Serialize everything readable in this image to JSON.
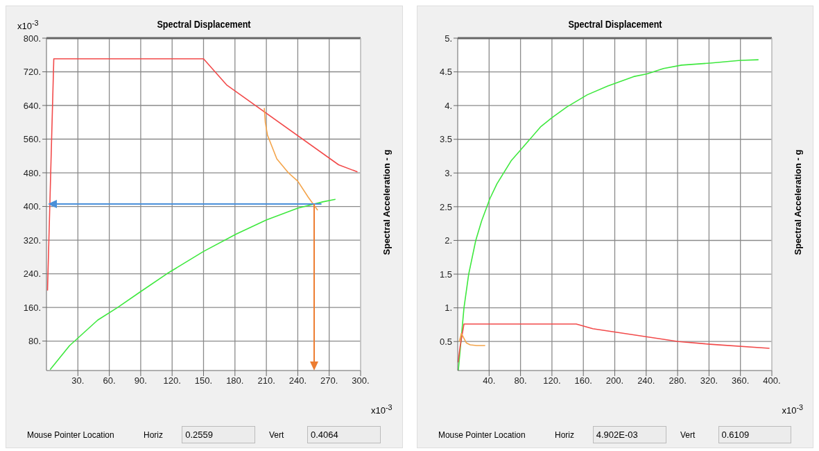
{
  "chart_data": [
    {
      "type": "line",
      "title": "Spectral Displacement",
      "ylabel": "Spectral Acceleration - g",
      "xlim": [
        0,
        300
      ],
      "ylim": [
        10,
        800
      ],
      "xticks": [
        {
          "value": 30,
          "label": "30."
        },
        {
          "value": 60,
          "label": "60."
        },
        {
          "value": 90,
          "label": "90."
        },
        {
          "value": 120,
          "label": "120."
        },
        {
          "value": 150,
          "label": "150."
        },
        {
          "value": 180,
          "label": "180."
        },
        {
          "value": 210,
          "label": "210."
        },
        {
          "value": 240,
          "label": "240."
        },
        {
          "value": 270,
          "label": "270."
        },
        {
          "value": 300,
          "label": "300."
        }
      ],
      "yticks": [
        {
          "value": 80,
          "label": "80."
        },
        {
          "value": 160,
          "label": "160."
        },
        {
          "value": 240,
          "label": "240."
        },
        {
          "value": 320,
          "label": "320."
        },
        {
          "value": 400,
          "label": "400."
        },
        {
          "value": 480,
          "label": "480."
        },
        {
          "value": 560,
          "label": "560."
        },
        {
          "value": 640,
          "label": "640."
        },
        {
          "value": 720,
          "label": "720."
        },
        {
          "value": 800,
          "label": "800."
        }
      ],
      "grid": true,
      "marker": "none",
      "line_style": "solid",
      "annotations": [
        "x10$^{-3}$",
        "x10$^{-3}$",
        "Mouse Pointer Location",
        "Horiz",
        "0.2559",
        "Vert",
        "0.4064"
      ],
      "series": [
        {
          "color": "#f24a4a",
          "x": [
            1,
            7,
            150,
            172,
            279,
            297
          ],
          "values": [
            200,
            751,
            751,
            689,
            499,
            482
          ]
        },
        {
          "color": "#3ee83e",
          "x": [
            3.5,
            22,
            49,
            68,
            89,
            115,
            150,
            181,
            210,
            240,
            264,
            276
          ],
          "values": [
            12,
            69,
            130,
            160,
            196,
            240,
            293,
            334,
            368,
            396,
            411,
            417
          ]
        },
        {
          "color": "#f4a44a",
          "x": [
            208,
            209,
            211,
            220,
            231,
            240,
            250,
            259
          ],
          "values": [
            634,
            600,
            570,
            513,
            480,
            460,
            422,
            391
          ]
        }
      ]
    },
    {
      "type": "line",
      "title": "Spectral Displacement",
      "ylabel": "Spectral Acceleration - g",
      "xlim": [
        0,
        400
      ],
      "ylim": [
        0.07,
        5
      ],
      "xticks": [
        {
          "value": 40,
          "label": "40."
        },
        {
          "value": 80,
          "label": "80."
        },
        {
          "value": 120,
          "label": "120."
        },
        {
          "value": 160,
          "label": "160."
        },
        {
          "value": 200,
          "label": "200."
        },
        {
          "value": 240,
          "label": "240."
        },
        {
          "value": 280,
          "label": "280."
        },
        {
          "value": 320,
          "label": "320."
        },
        {
          "value": 360,
          "label": "360."
        },
        {
          "value": 400,
          "label": "400."
        }
      ],
      "yticks": [
        0.5,
        {
          "value": 1,
          "label": "1."
        },
        1.5,
        {
          "value": 2,
          "label": "2."
        },
        2.5,
        {
          "value": 3,
          "label": "3."
        },
        3.5,
        {
          "value": 4,
          "label": "4."
        },
        4.5,
        {
          "value": 5,
          "label": "5."
        }
      ],
      "grid": true,
      "marker": "none",
      "line_style": "solid",
      "annotations": [
        "x10$^{-3}$",
        "Mouse Pointer Location",
        "Horiz",
        "4.902E-03",
        "Vert",
        "0.6109"
      ],
      "series": [
        {
          "color": "#3ee83e",
          "x": [
            0.8,
            8,
            14,
            23,
            30.5,
            41,
            50,
            68,
            80,
            106,
            120,
            139,
            165,
            191,
            224,
            241,
            262,
            285,
            321,
            360,
            383
          ],
          "values": [
            0.07,
            1.0,
            1.5,
            2.0,
            2.29,
            2.62,
            2.84,
            3.18,
            3.34,
            3.69,
            3.82,
            3.98,
            4.16,
            4.29,
            4.43,
            4.47,
            4.55,
            4.6,
            4.63,
            4.67,
            4.68
          ]
        },
        {
          "color": "#f24a4a",
          "x": [
            0.5,
            3,
            8,
            151,
            172,
            281,
            321,
            397
          ],
          "values": [
            0.19,
            0.42,
            0.76,
            0.76,
            0.69,
            0.5,
            0.46,
            0.4
          ]
        },
        {
          "color": "#f4a44a",
          "x": [
            2,
            4.7,
            11,
            16,
            24,
            35
          ],
          "values": [
            0.5,
            0.62,
            0.48,
            0.45,
            0.44,
            0.44
          ]
        }
      ]
    }
  ]
}
